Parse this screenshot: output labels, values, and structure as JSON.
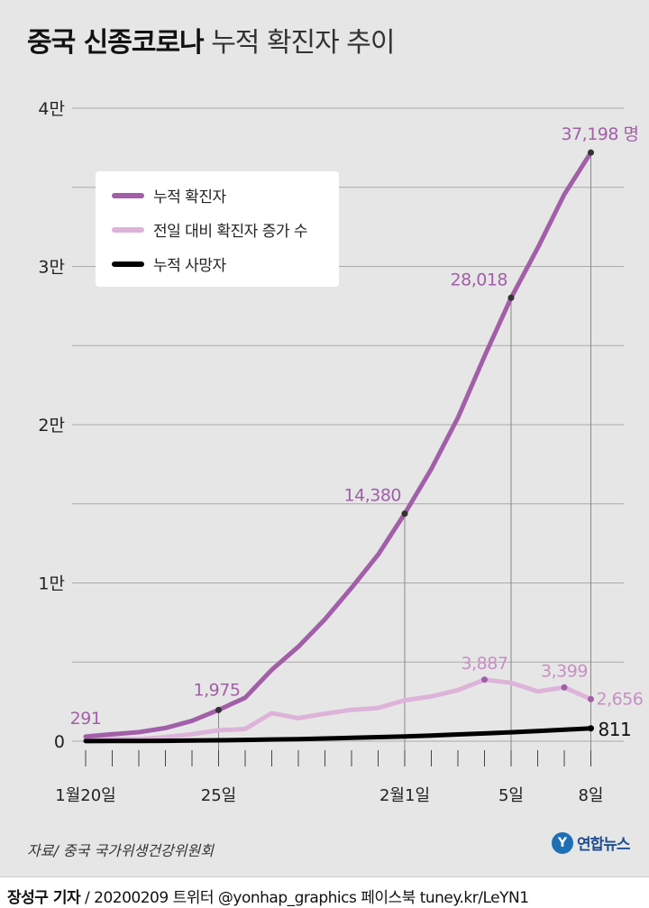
{
  "title": {
    "bold": "중국 신종코로나",
    "light": "누적 확진자 추이"
  },
  "colors": {
    "confirmed": "#a25fa8",
    "daily_increase": "#ddb3d9",
    "deaths": "#000000",
    "confirmed_label": "#a25fa8",
    "daily_label": "#c98ec6"
  },
  "chart_data": {
    "type": "line",
    "x": [
      "1/20",
      "1/21",
      "1/22",
      "1/23",
      "1/24",
      "1/25",
      "1/26",
      "1/27",
      "1/28",
      "1/29",
      "1/30",
      "1/31",
      "2/1",
      "2/2",
      "2/3",
      "2/4",
      "2/5",
      "2/6",
      "2/7",
      "2/8"
    ],
    "x_tick_labels": [
      {
        "x": "1/20",
        "label": "1월20일"
      },
      {
        "x": "1/25",
        "label": "25일"
      },
      {
        "x": "2/1",
        "label": "2월1일"
      },
      {
        "x": "2/5",
        "label": "5일"
      },
      {
        "x": "2/8",
        "label": "8일"
      }
    ],
    "y_tick_labels": [
      {
        "y": 0,
        "label": "0"
      },
      {
        "y": 10000,
        "label": "1만"
      },
      {
        "y": 20000,
        "label": "2만"
      },
      {
        "y": 30000,
        "label": "3만"
      },
      {
        "y": 40000,
        "label": "4만"
      }
    ],
    "ylim": [
      0,
      40000
    ],
    "grid": true,
    "legend_position": "top-left",
    "series": [
      {
        "key": "confirmed",
        "name": "누적 확진자",
        "values": [
          291,
          440,
          571,
          830,
          1287,
          1975,
          2744,
          4515,
          5974,
          7711,
          9692,
          11791,
          14380,
          17205,
          20438,
          24324,
          28018,
          31161,
          34546,
          37198
        ]
      },
      {
        "key": "daily_increase",
        "name": "전일 대비 확진자 증가 수",
        "values": [
          77,
          149,
          131,
          259,
          444,
          688,
          769,
          1771,
          1459,
          1737,
          1981,
          2099,
          2589,
          2825,
          3233,
          3887,
          3694,
          3143,
          3399,
          2656
        ]
      },
      {
        "key": "deaths",
        "name": "누적 사망자",
        "values": [
          6,
          9,
          17,
          25,
          41,
          56,
          80,
          106,
          132,
          170,
          213,
          259,
          304,
          361,
          425,
          490,
          563,
          636,
          722,
          811
        ]
      }
    ],
    "annotations": [
      {
        "series": "confirmed",
        "x": "1/20",
        "label": "291"
      },
      {
        "series": "confirmed",
        "x": "1/25",
        "label": "1,975"
      },
      {
        "series": "confirmed",
        "x": "2/1",
        "label": "14,380"
      },
      {
        "series": "confirmed",
        "x": "2/5",
        "label": "28,018"
      },
      {
        "series": "confirmed",
        "x": "2/8",
        "label": "37,198 명"
      },
      {
        "series": "daily_increase",
        "x": "2/4",
        "label": "3,887"
      },
      {
        "series": "daily_increase",
        "x": "2/7",
        "label": "3,399"
      },
      {
        "series": "daily_increase",
        "x": "2/8",
        "label": "2,656"
      },
      {
        "series": "deaths",
        "x": "2/8",
        "label": "811"
      }
    ]
  },
  "source": "자료/ 중국 국가위생건강위원회",
  "logo": {
    "mark": "Y",
    "text": "연합뉴스"
  },
  "footer": {
    "author": "장성구 기자",
    "rest": " / 20200209  트위터 @yonhap_graphics  페이스북 tuney.kr/LeYN1"
  }
}
